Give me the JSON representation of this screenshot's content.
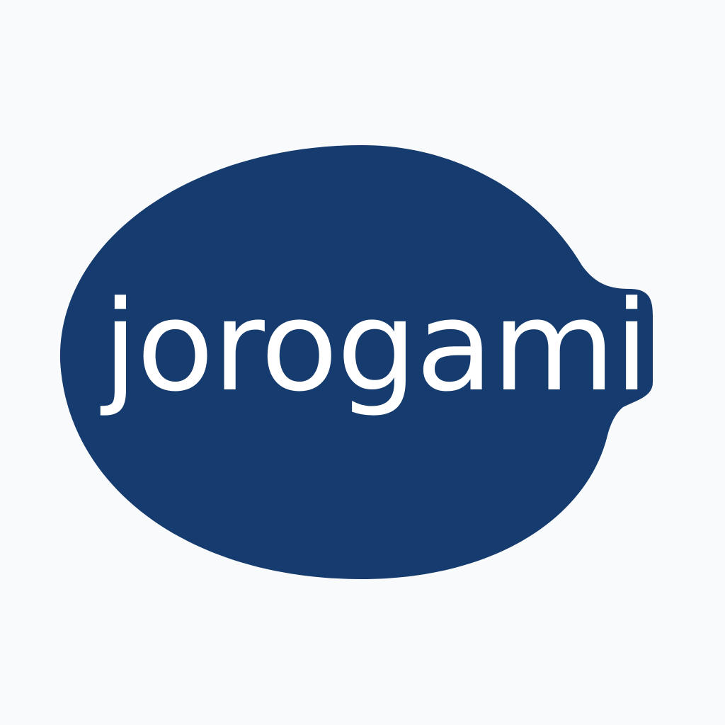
{
  "logo": {
    "wordmark": "jorogami",
    "bubble_color": "#163c6f",
    "text_color": "#ffffff",
    "background_color": "#f9fafb"
  }
}
